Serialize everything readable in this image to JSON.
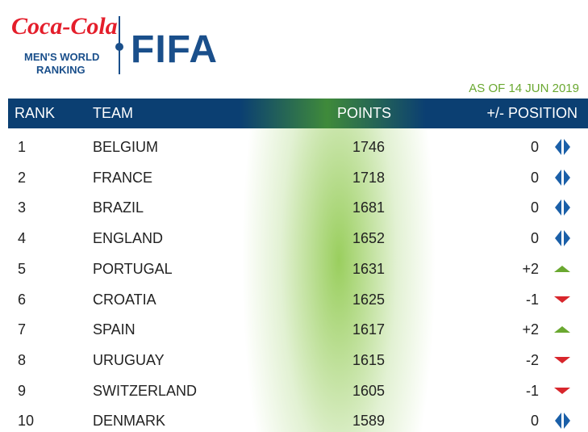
{
  "header": {
    "sponsor": "Coca-Cola",
    "subtitle_line1": "MEN'S WORLD",
    "subtitle_line2": "RANKING",
    "brand": "FIFA",
    "date": "AS OF 14 JUN 2019"
  },
  "table": {
    "columns": [
      "RANK",
      "TEAM",
      "POINTS",
      "+/- POSITION"
    ],
    "rows": [
      [
        1,
        "BELGIUM",
        1746,
        "0"
      ],
      [
        2,
        "FRANCE",
        1718,
        "0"
      ],
      [
        3,
        "BRAZIL",
        1681,
        "0"
      ],
      [
        4,
        "ENGLAND",
        1652,
        "0"
      ],
      [
        5,
        "PORTUGAL",
        1631,
        "+2"
      ],
      [
        6,
        "CROATIA",
        1625,
        "-1"
      ],
      [
        7,
        "SPAIN",
        1617,
        "+2"
      ],
      [
        8,
        "URUGUAY",
        1615,
        "-2"
      ],
      [
        9,
        "SWITZERLAND",
        1605,
        "-1"
      ],
      [
        10,
        "DENMARK",
        1589,
        "0"
      ]
    ]
  }
}
